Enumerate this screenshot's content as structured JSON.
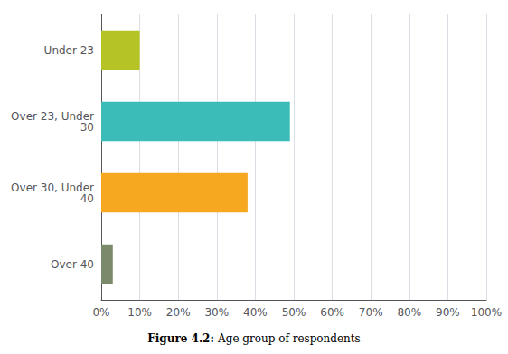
{
  "chart_data": {
    "type": "bar",
    "orientation": "horizontal",
    "categories": [
      "Under 23",
      "Over 23, Under\n30",
      "Over 30, Under\n40",
      "Over 40"
    ],
    "values": [
      10,
      49,
      38,
      3
    ],
    "colors": [
      "#b5c424",
      "#3cbcb8",
      "#f5a820",
      "#7a8a6a"
    ],
    "xlim": [
      0,
      100
    ],
    "xticks": [
      {
        "value": 0,
        "label": "0%"
      },
      {
        "value": 10,
        "label": "10%"
      },
      {
        "value": 20,
        "label": "20%"
      },
      {
        "value": 30,
        "label": "30%"
      },
      {
        "value": 40,
        "label": "40%"
      },
      {
        "value": 50,
        "label": "50%"
      },
      {
        "value": 60,
        "label": "60%"
      },
      {
        "value": 70,
        "label": "70%"
      },
      {
        "value": 80,
        "label": "80%"
      },
      {
        "value": 90,
        "label": "90%"
      },
      {
        "value": 100,
        "label": "100%"
      }
    ],
    "grid": true,
    "annotations": [
      "Figure 4.2:",
      "Age group of respondents"
    ]
  }
}
